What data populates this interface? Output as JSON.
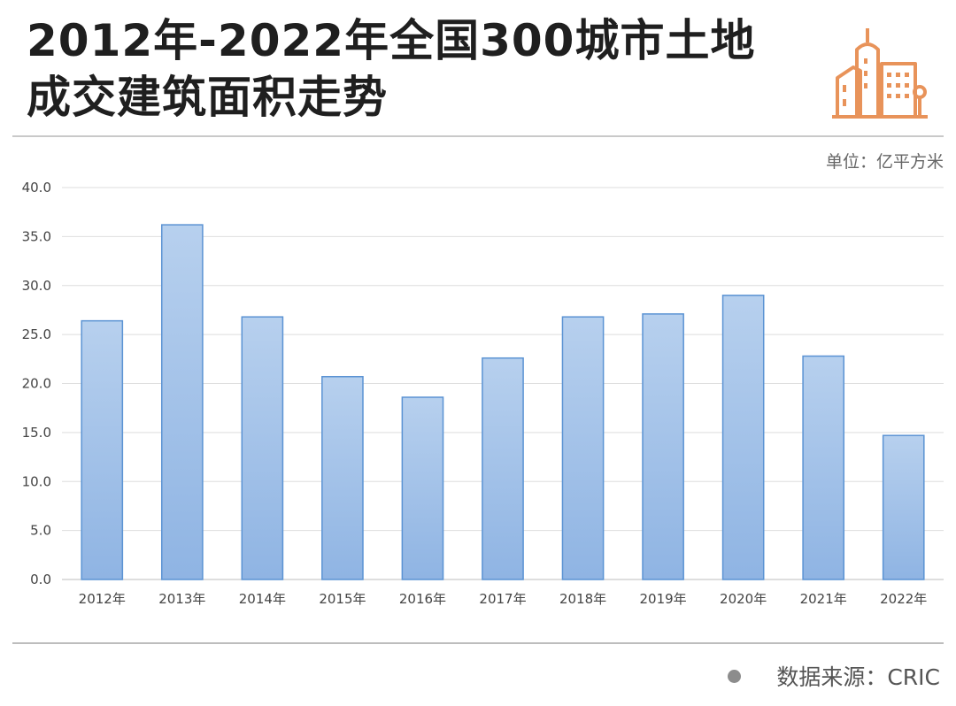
{
  "header": {
    "title": "2012年-2022年全国300城市土地成交建筑面积走势",
    "unit": "单位：亿平方米"
  },
  "footer": {
    "source": "数据来源：CRIC"
  },
  "colors": {
    "bar_top": "#b7d0ee",
    "bar_bottom": "#8fb4e3",
    "bar_stroke": "#5b93d3",
    "logo_accent": "#e8935a",
    "grid": "#dedede"
  },
  "icons": {
    "logo": "building-icon"
  },
  "chart_data": {
    "type": "bar",
    "categories": [
      "2012年",
      "2013年",
      "2014年",
      "2015年",
      "2016年",
      "2017年",
      "2018年",
      "2019年",
      "2020年",
      "2021年",
      "2022年"
    ],
    "values": [
      26.4,
      36.2,
      26.8,
      20.7,
      18.6,
      22.6,
      26.8,
      27.1,
      29.0,
      22.8,
      14.7
    ],
    "yticks": [
      "0.0",
      "5.0",
      "10.0",
      "15.0",
      "20.0",
      "25.0",
      "30.0",
      "35.0",
      "40.0"
    ],
    "ylim": [
      0,
      40
    ],
    "grid": true,
    "legend": "none"
  }
}
